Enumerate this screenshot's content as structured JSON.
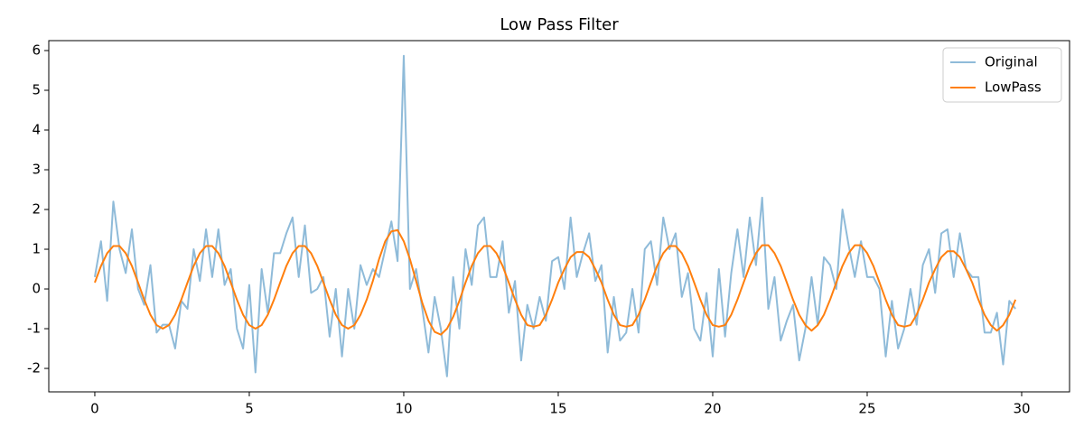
{
  "chart_data": {
    "type": "line",
    "title": "Low Pass Filter",
    "x": [
      0,
      0.2,
      0.4,
      0.6,
      0.8,
      1,
      1.2,
      1.4,
      1.6,
      1.8,
      2,
      2.2,
      2.4,
      2.6,
      2.8,
      3,
      3.2,
      3.4,
      3.6,
      3.8,
      4,
      4.2,
      4.4,
      4.6,
      4.8,
      5,
      5.2,
      5.4,
      5.6,
      5.8,
      6,
      6.2,
      6.4,
      6.6,
      6.8,
      7,
      7.2,
      7.4,
      7.6,
      7.8,
      8,
      8.2,
      8.4,
      8.6,
      8.8,
      9,
      9.2,
      9.4,
      9.6,
      9.8,
      10,
      10.2,
      10.4,
      10.6,
      10.8,
      11,
      11.2,
      11.4,
      11.6,
      11.8,
      12,
      12.2,
      12.4,
      12.6,
      12.8,
      13,
      13.2,
      13.4,
      13.6,
      13.8,
      14,
      14.2,
      14.4,
      14.6,
      14.8,
      15,
      15.2,
      15.4,
      15.6,
      15.8,
      16,
      16.2,
      16.4,
      16.6,
      16.8,
      17,
      17.2,
      17.4,
      17.6,
      17.8,
      18,
      18.2,
      18.4,
      18.6,
      18.8,
      19,
      19.2,
      19.4,
      19.6,
      19.8,
      20,
      20.2,
      20.4,
      20.6,
      20.8,
      21,
      21.2,
      21.4,
      21.6,
      21.8,
      22,
      22.2,
      22.4,
      22.6,
      22.8,
      23,
      23.2,
      23.4,
      23.6,
      23.8,
      24,
      24.2,
      24.4,
      24.6,
      24.8,
      25,
      25.2,
      25.4,
      25.6,
      25.8,
      26,
      26.2,
      26.4,
      26.6,
      26.8,
      27,
      27.2,
      27.4,
      27.6,
      27.8,
      28,
      28.2,
      28.4,
      28.6,
      28.8,
      29,
      29.2,
      29.4,
      29.6,
      29.8
    ],
    "series": [
      {
        "name": "Original",
        "color": "#1f77b4",
        "opacity": 0.5,
        "values": [
          0.3,
          1.2,
          -0.3,
          2.2,
          1.0,
          0.4,
          1.5,
          0.0,
          -0.4,
          0.6,
          -1.1,
          -0.9,
          -0.9,
          -1.5,
          -0.3,
          -0.5,
          1.0,
          0.2,
          1.5,
          0.3,
          1.5,
          0.1,
          0.5,
          -1.0,
          -1.5,
          0.1,
          -2.1,
          0.5,
          -0.6,
          0.9,
          0.9,
          1.4,
          1.8,
          0.3,
          1.6,
          -0.1,
          0.0,
          0.3,
          -1.2,
          0.0,
          -1.7,
          0.0,
          -1.0,
          0.6,
          0.1,
          0.5,
          0.3,
          1.0,
          1.7,
          0.7,
          5.87,
          0.0,
          0.5,
          -0.5,
          -1.6,
          -0.2,
          -1.0,
          -2.2,
          0.3,
          -1.0,
          1.0,
          0.1,
          1.6,
          1.8,
          0.3,
          0.3,
          1.2,
          -0.6,
          0.2,
          -1.8,
          -0.4,
          -1.0,
          -0.2,
          -0.8,
          0.7,
          0.8,
          0.0,
          1.8,
          0.3,
          0.9,
          1.4,
          0.2,
          0.6,
          -1.6,
          -0.2,
          -1.3,
          -1.1,
          0.0,
          -1.1,
          1.0,
          1.2,
          0.1,
          1.8,
          1.0,
          1.4,
          -0.2,
          0.4,
          -1.0,
          -1.3,
          -0.1,
          -1.7,
          0.5,
          -1.2,
          0.4,
          1.5,
          0.3,
          1.8,
          0.6,
          2.3,
          -0.5,
          0.3,
          -1.3,
          -0.8,
          -0.4,
          -1.8,
          -1.0,
          0.3,
          -0.9,
          0.8,
          0.6,
          0.0,
          2.0,
          1.1,
          0.3,
          1.2,
          0.3,
          0.3,
          0.0,
          -1.7,
          -0.3,
          -1.5,
          -1.0,
          0.0,
          -0.9,
          0.6,
          1.0,
          -0.1,
          1.4,
          1.5,
          0.3,
          1.4,
          0.5,
          0.3,
          0.3,
          -1.1,
          -1.1,
          -0.6,
          -1.9,
          -0.3,
          -0.5
        ]
      },
      {
        "name": "LowPass",
        "color": "#ff7f0e",
        "opacity": 1,
        "values": [
          0.16,
          0.58,
          0.9,
          1.08,
          1.08,
          0.9,
          0.58,
          0.16,
          -0.27,
          -0.65,
          -0.91,
          -1.0,
          -0.91,
          -0.65,
          -0.27,
          0.16,
          0.58,
          0.9,
          1.08,
          1.08,
          0.9,
          0.58,
          0.16,
          -0.27,
          -0.65,
          -0.91,
          -1.0,
          -0.91,
          -0.65,
          -0.27,
          0.16,
          0.58,
          0.9,
          1.08,
          1.08,
          0.9,
          0.58,
          0.16,
          -0.27,
          -0.65,
          -0.91,
          -1.0,
          -0.91,
          -0.65,
          -0.27,
          0.2,
          0.75,
          1.2,
          1.45,
          1.48,
          1.2,
          0.75,
          0.2,
          -0.35,
          -0.8,
          -1.08,
          -1.15,
          -1.0,
          -0.7,
          -0.3,
          0.16,
          0.58,
          0.9,
          1.08,
          1.08,
          0.9,
          0.58,
          0.16,
          -0.27,
          -0.65,
          -0.91,
          -0.95,
          -0.91,
          -0.65,
          -0.27,
          0.16,
          0.5,
          0.8,
          0.93,
          0.93,
          0.8,
          0.5,
          0.16,
          -0.27,
          -0.65,
          -0.91,
          -0.95,
          -0.91,
          -0.65,
          -0.27,
          0.16,
          0.58,
          0.9,
          1.08,
          1.08,
          0.9,
          0.58,
          0.16,
          -0.27,
          -0.65,
          -0.91,
          -0.95,
          -0.91,
          -0.65,
          -0.27,
          0.16,
          0.58,
          0.9,
          1.1,
          1.1,
          0.9,
          0.58,
          0.16,
          -0.27,
          -0.65,
          -0.91,
          -1.05,
          -0.91,
          -0.65,
          -0.27,
          0.16,
          0.58,
          0.9,
          1.1,
          1.1,
          0.9,
          0.58,
          0.16,
          -0.27,
          -0.65,
          -0.91,
          -0.95,
          -0.91,
          -0.65,
          -0.27,
          0.16,
          0.5,
          0.8,
          0.95,
          0.95,
          0.8,
          0.5,
          0.16,
          -0.27,
          -0.65,
          -0.91,
          -1.05,
          -0.91,
          -0.65,
          -0.27
        ]
      }
    ],
    "xlim": [
      -1.49,
      31.55
    ],
    "ylim": [
      -2.59,
      6.25
    ],
    "xticks": [
      0,
      5,
      10,
      15,
      20,
      25,
      30
    ],
    "yticks": [
      -2,
      -1,
      0,
      1,
      2,
      3,
      4,
      5,
      6
    ],
    "grid": false,
    "legend": "upper right"
  }
}
